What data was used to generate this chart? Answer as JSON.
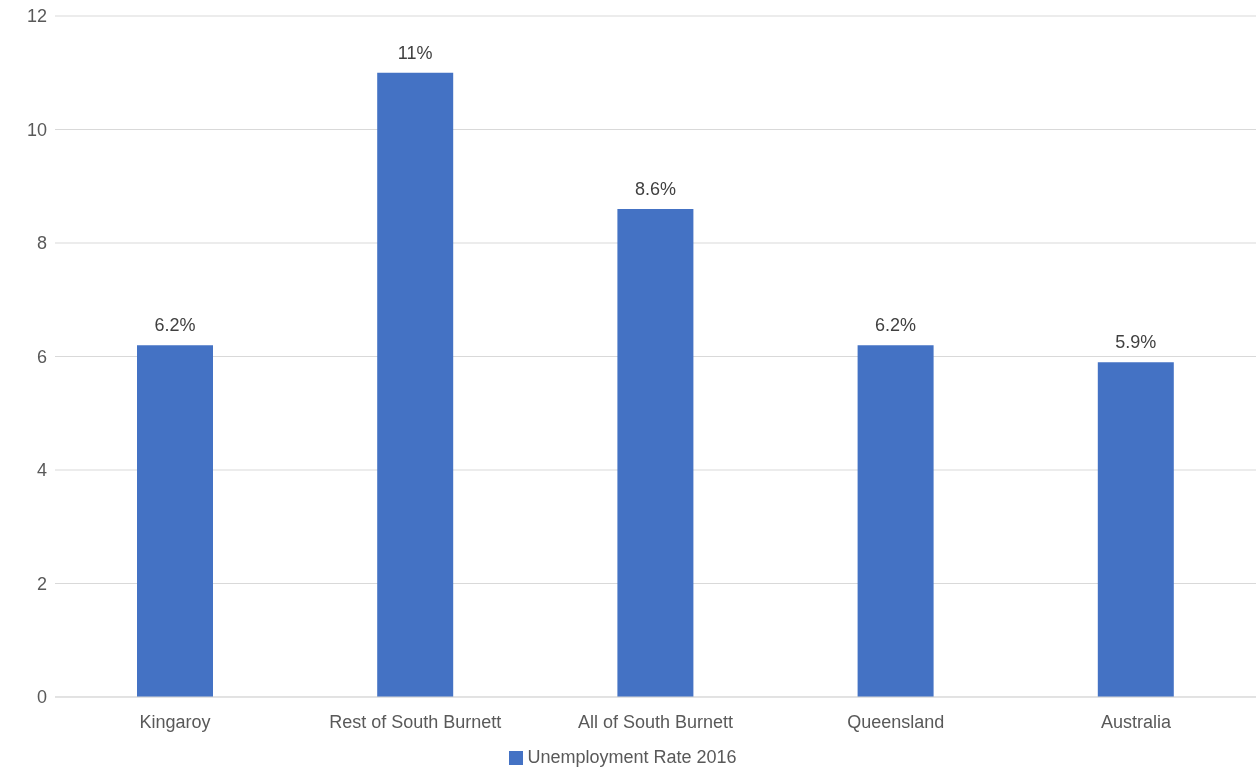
{
  "chart_data": {
    "type": "bar",
    "categories": [
      "Kingaroy",
      "Rest of South Burnett",
      "All of South Burnett",
      "Queensland",
      "Australia"
    ],
    "series": [
      {
        "name": "Unemployment Rate 2016",
        "color": "#4472c4",
        "values": [
          6.2,
          11,
          8.6,
          6.2,
          5.9
        ],
        "value_labels": [
          "6.2%",
          "11%",
          "8.6%",
          "6.2%",
          "5.9%"
        ]
      }
    ],
    "ylim": [
      0,
      12
    ],
    "yticks": [
      0,
      2,
      4,
      6,
      8,
      10,
      12
    ],
    "grid": "y",
    "legend": "bottom"
  }
}
